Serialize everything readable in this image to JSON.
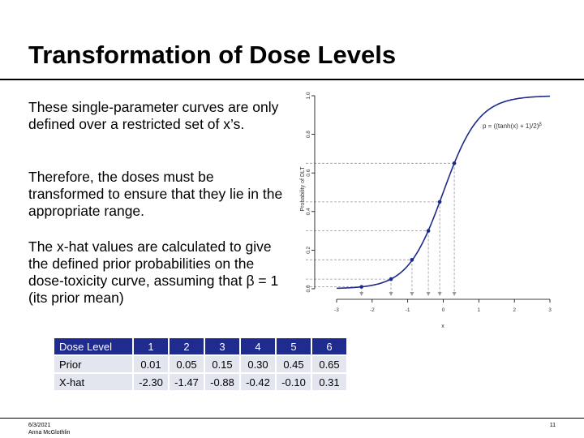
{
  "slide": {
    "title": "Transformation of Dose Levels",
    "paragraphs": [
      "These single-parameter curves are only defined over a restricted set of x’s.",
      "Therefore, the doses must be transformed to ensure that they lie in the appropriate range.",
      "The x-hat values are calculated to give the defined prior probabilities on the dose-toxicity curve, assuming that β = 1 (its prior mean)"
    ],
    "footer": {
      "date": "6/3/2021",
      "author": "Anna McGlothlin",
      "page": "11"
    }
  },
  "table": {
    "header": [
      "Dose Level",
      "1",
      "2",
      "3",
      "4",
      "5",
      "6"
    ],
    "rows": [
      [
        "Prior",
        "0.01",
        "0.05",
        "0.15",
        "0.30",
        "0.45",
        "0.65"
      ],
      [
        "X-hat",
        "-2.30",
        "-1.47",
        "-0.88",
        "-0.42",
        "-0.10",
        "0.31"
      ]
    ]
  },
  "chart_data": {
    "type": "line",
    "xlabel": "x",
    "ylabel": "Probability of DLT",
    "annotation": "p = ((tanh(x) + 1)/2)^β",
    "xlim": [
      -3,
      3
    ],
    "ylim": [
      0,
      1
    ],
    "xticks": [
      "-3",
      "-2",
      "-1",
      "0",
      "1",
      "2",
      "3"
    ],
    "yticks": [
      "0.0",
      "0.2",
      "0.4",
      "0.6",
      "0.8",
      "1.0"
    ],
    "beta": 1,
    "points": [
      {
        "x": -2.3,
        "y": 0.01
      },
      {
        "x": -1.47,
        "y": 0.05
      },
      {
        "x": -0.88,
        "y": 0.15
      },
      {
        "x": -0.42,
        "y": 0.3
      },
      {
        "x": -0.1,
        "y": 0.45
      },
      {
        "x": 0.31,
        "y": 0.65
      }
    ],
    "colors": {
      "curve": "#1c2a8a",
      "guides": "#999999",
      "axis": "#000000"
    }
  }
}
